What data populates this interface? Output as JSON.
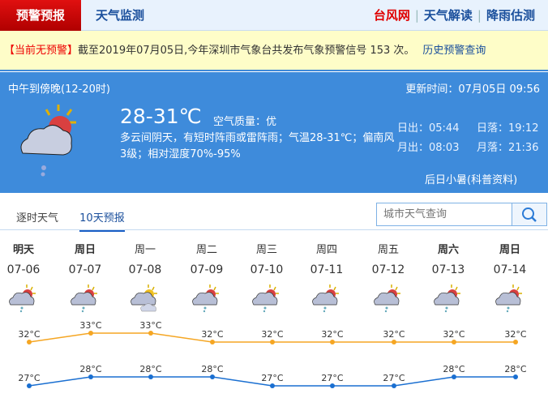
{
  "topnav": {
    "active_tab": "预警预报",
    "tab2": "天气监测",
    "links": [
      {
        "label": "台风网",
        "color": "#e00000"
      },
      {
        "label": "天气解读",
        "color": "#1a4f9c"
      },
      {
        "label": "降雨估测",
        "color": "#1a4f9c"
      }
    ]
  },
  "alert": {
    "status": "【当前无预警】",
    "text": "截至2019年07月05日,今年深圳市气象台共发布气象预警信号 153 次。",
    "link": "历史预警查询"
  },
  "current": {
    "period": "中午到傍晚(12-20时)",
    "updated": "更新时间：07月05日 09:56",
    "temp": "28-31℃",
    "aqi_label": "空气质量：",
    "aqi": "优",
    "desc": "多云间阴天，有短时阵雨或雷阵雨；气温28-31℃；偏南风3级；相对湿度70%-95%",
    "sunrise": "日出：05:44",
    "sunset": "日落：19:12",
    "moonrise": "月出：08:03",
    "moonset": "月落：21:36",
    "note": "后日小暑(科普资料)",
    "icon": "partly-cloudy-rain-icon"
  },
  "tabs": [
    {
      "label": "逐时天气",
      "active": false
    },
    {
      "label": "10天预报",
      "active": true
    }
  ],
  "search": {
    "placeholder": "城市天气查询"
  },
  "forecast": [
    {
      "day": "明天",
      "date": "07-06",
      "bold": true,
      "icon": "rain",
      "high": 32,
      "low": 27
    },
    {
      "day": "周日",
      "date": "07-07",
      "bold": true,
      "icon": "rain",
      "high": 33,
      "low": 28
    },
    {
      "day": "周一",
      "date": "07-08",
      "bold": false,
      "icon": "cloudy",
      "high": 33,
      "low": 28
    },
    {
      "day": "周二",
      "date": "07-09",
      "bold": false,
      "icon": "rain",
      "high": 32,
      "low": 28
    },
    {
      "day": "周三",
      "date": "07-10",
      "bold": false,
      "icon": "rain",
      "high": 32,
      "low": 27
    },
    {
      "day": "周四",
      "date": "07-11",
      "bold": false,
      "icon": "rain",
      "high": 32,
      "low": 27
    },
    {
      "day": "周五",
      "date": "07-12",
      "bold": false,
      "icon": "rain",
      "high": 32,
      "low": 27
    },
    {
      "day": "周六",
      "date": "07-13",
      "bold": true,
      "icon": "rain",
      "high": 32,
      "low": 28
    },
    {
      "day": "周日",
      "date": "07-14",
      "bold": true,
      "icon": "rain",
      "high": 32,
      "low": 28
    }
  ],
  "unit": "°C",
  "colors": {
    "high": "#f5a623",
    "low": "#1a6fd1"
  }
}
